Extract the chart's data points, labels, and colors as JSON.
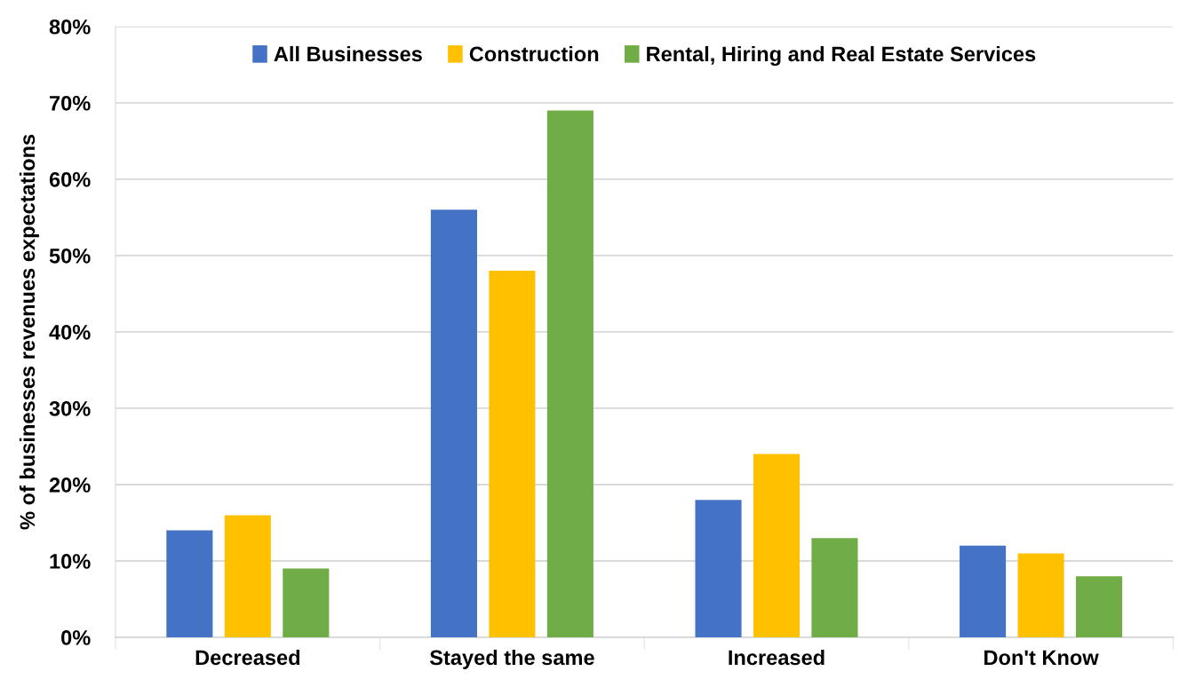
{
  "chart_data": {
    "type": "bar",
    "ylabel": "% of businesses revenues expectations",
    "categories": [
      "Decreased",
      "Stayed the same",
      "Increased",
      "Don't Know"
    ],
    "series": [
      {
        "name": "All Businesses",
        "color": "#4472c4",
        "values": [
          14,
          56,
          18,
          12
        ]
      },
      {
        "name": "Construction",
        "color": "#ffc000",
        "values": [
          16,
          48,
          24,
          11
        ]
      },
      {
        "name": "Rental, Hiring and Real Estate Services",
        "color": "#70ad47",
        "values": [
          9,
          69,
          13,
          8
        ]
      }
    ],
    "ylim": [
      0,
      80
    ],
    "yticks": [
      {
        "value": 0,
        "label": "0%"
      },
      {
        "value": 10,
        "label": "10%"
      },
      {
        "value": 20,
        "label": "20%"
      },
      {
        "value": 30,
        "label": "30%"
      },
      {
        "value": 40,
        "label": "40%"
      },
      {
        "value": 50,
        "label": "50%"
      },
      {
        "value": 60,
        "label": "60%"
      },
      {
        "value": 70,
        "label": "70%"
      },
      {
        "value": 80,
        "label": "80%"
      }
    ],
    "grid": "y",
    "legend": "top"
  }
}
